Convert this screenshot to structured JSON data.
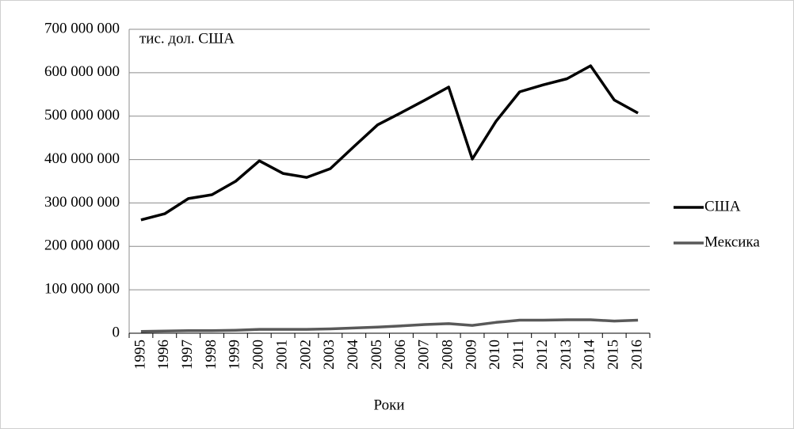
{
  "chart_data": {
    "type": "line",
    "annotation": "тис. дол. США",
    "x_label": "Роки",
    "categories": [
      "1995",
      "1996",
      "1997",
      "1998",
      "1999",
      "2000",
      "2001",
      "2002",
      "2003",
      "2004",
      "2005",
      "2006",
      "2007",
      "2008",
      "2009",
      "2010",
      "2011",
      "2012",
      "2013",
      "2014",
      "2015",
      "2016"
    ],
    "series": [
      {
        "name": "США",
        "color": "#000000",
        "values": [
          261000000,
          275000000,
          310000000,
          319000000,
          350000000,
          397000000,
          368000000,
          359000000,
          379000000,
          430000000,
          480000000,
          508000000,
          537000000,
          567000000,
          401000000,
          488000000,
          556000000,
          572000000,
          586000000,
          616000000,
          537000000,
          507000000
        ]
      },
      {
        "name": "Мексика",
        "color": "#595959",
        "values": [
          4000000,
          5000000,
          6000000,
          6000000,
          7000000,
          9000000,
          9000000,
          9000000,
          10000000,
          12000000,
          14000000,
          17000000,
          20000000,
          22000000,
          18000000,
          25000000,
          30000000,
          30000000,
          31000000,
          31000000,
          28000000,
          30000000
        ]
      }
    ],
    "ylim": [
      0,
      700000000
    ],
    "yticks": [
      0,
      {
        "value": 100000000,
        "label": "100 000 000"
      },
      {
        "value": 200000000,
        "label": "200 000 000"
      },
      {
        "value": 300000000,
        "label": "300 000 000"
      },
      {
        "value": 400000000,
        "label": "400 000 000"
      },
      {
        "value": 500000000,
        "label": "500 000 000"
      },
      {
        "value": 600000000,
        "label": "600 000 000"
      },
      {
        "value": 700000000,
        "label": "700 000 000"
      }
    ],
    "grid": true,
    "legend": "right"
  }
}
